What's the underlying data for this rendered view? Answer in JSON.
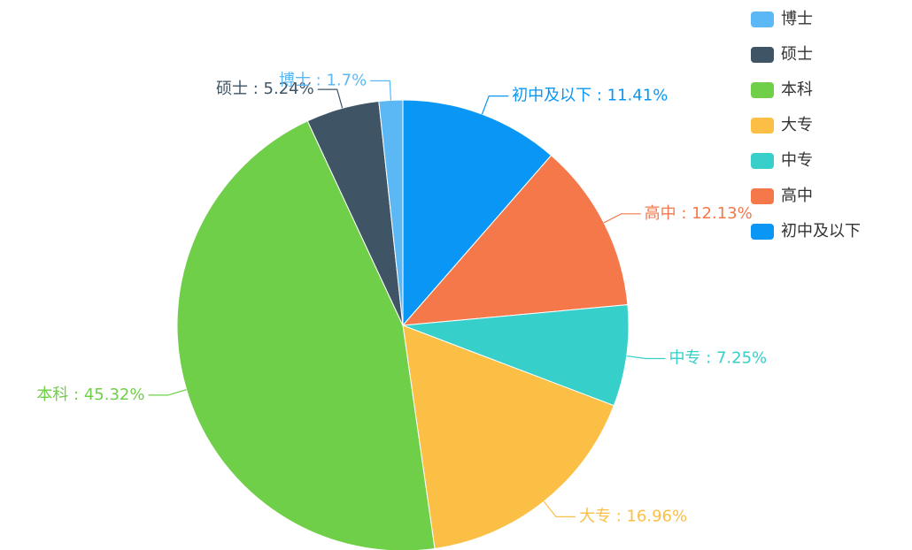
{
  "chart_data": {
    "type": "pie",
    "categories": [
      "初中及以下",
      "高中",
      "中专",
      "大专",
      "本科",
      "硕士",
      "博士"
    ],
    "values": [
      11.41,
      12.13,
      7.25,
      16.96,
      45.32,
      5.24,
      1.7
    ],
    "value_labels": [
      "初中及以下 : 11.41%",
      "高中 : 12.13%",
      "中专 : 7.25%",
      "大专 : 16.96%",
      "本科 : 45.32%",
      "硕士 : 5.24%",
      "博士 : 1.7%"
    ],
    "colors": [
      "#0a96f5",
      "#f5784a",
      "#36cfc9",
      "#fbbf45",
      "#6fcf48",
      "#3f5464",
      "#5bb8f5"
    ],
    "legend": "top-right"
  }
}
